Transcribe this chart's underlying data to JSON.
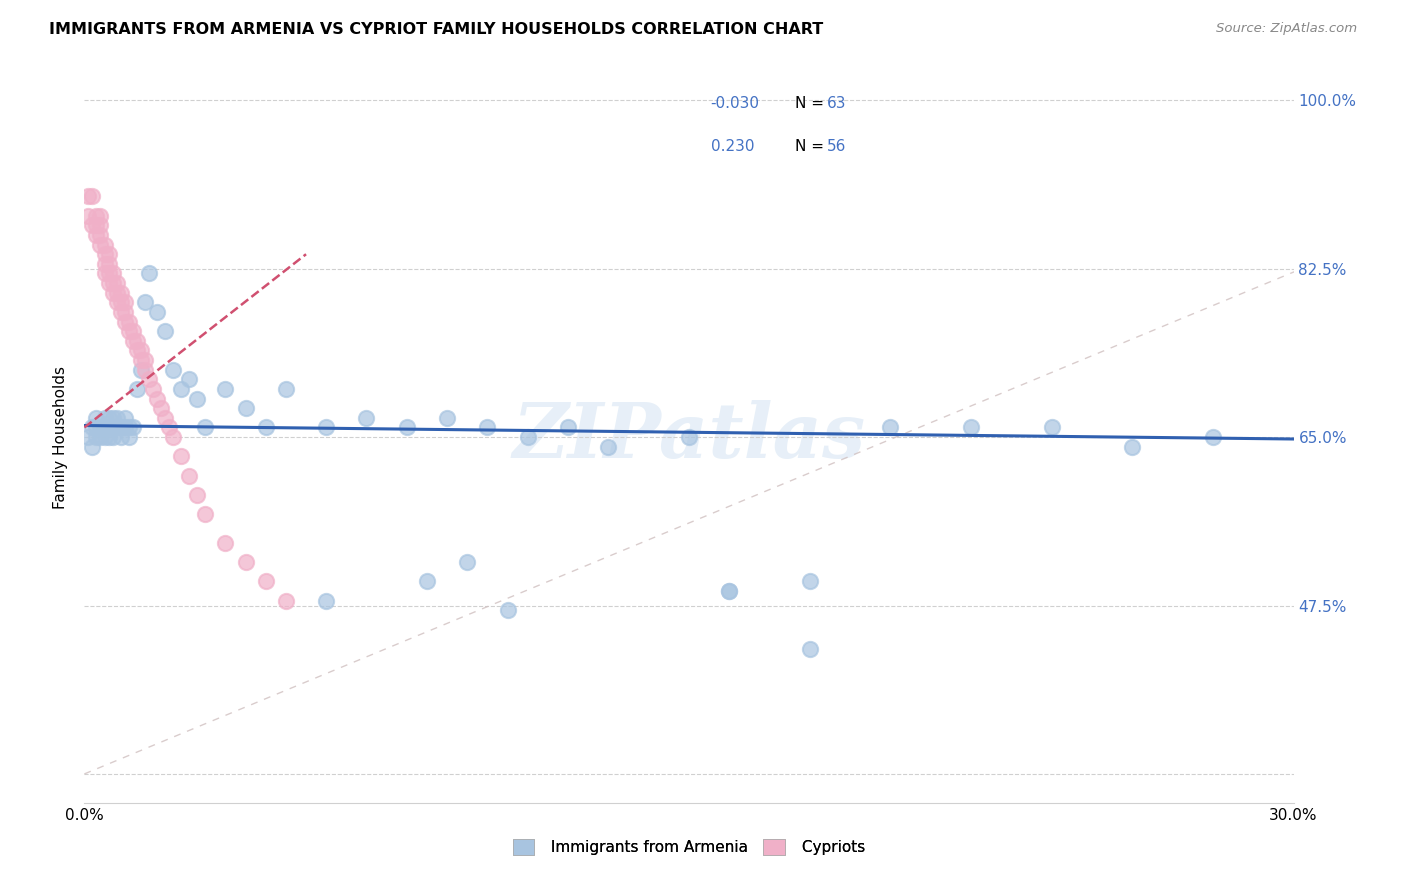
{
  "title": "IMMIGRANTS FROM ARMENIA VS CYPRIOT FAMILY HOUSEHOLDS CORRELATION CHART",
  "source": "Source: ZipAtlas.com",
  "ylabel": "Family Households",
  "watermark": "ZIPatlas",
  "color_armenia": "#a8c4e0",
  "color_cyprus": "#f0b0c8",
  "color_line_armenia": "#3060b0",
  "color_line_cyprus": "#d05070",
  "xlim": [
    0.0,
    0.3
  ],
  "ylim": [
    0.27,
    1.03
  ],
  "ytick_vals": [
    0.3,
    0.475,
    0.65,
    0.825,
    1.0
  ],
  "ytick_labels": [
    "",
    "47.5%",
    "65.0%",
    "82.5%",
    "100.0%"
  ],
  "armenia_x": [
    0.001,
    0.002,
    0.002,
    0.003,
    0.003,
    0.003,
    0.004,
    0.004,
    0.005,
    0.005,
    0.005,
    0.006,
    0.006,
    0.006,
    0.007,
    0.007,
    0.007,
    0.008,
    0.008,
    0.009,
    0.009,
    0.01,
    0.01,
    0.011,
    0.011,
    0.012,
    0.013,
    0.014,
    0.015,
    0.016,
    0.018,
    0.02,
    0.022,
    0.024,
    0.026,
    0.028,
    0.03,
    0.035,
    0.04,
    0.045,
    0.05,
    0.06,
    0.07,
    0.08,
    0.09,
    0.1,
    0.11,
    0.12,
    0.13,
    0.15,
    0.16,
    0.18,
    0.2,
    0.22,
    0.24,
    0.26,
    0.28,
    0.16,
    0.06,
    0.085,
    0.095,
    0.105,
    0.18
  ],
  "armenia_y": [
    0.65,
    0.64,
    0.66,
    0.65,
    0.66,
    0.67,
    0.65,
    0.66,
    0.65,
    0.66,
    0.67,
    0.65,
    0.66,
    0.67,
    0.65,
    0.66,
    0.67,
    0.66,
    0.67,
    0.65,
    0.66,
    0.66,
    0.67,
    0.65,
    0.66,
    0.66,
    0.7,
    0.72,
    0.79,
    0.82,
    0.78,
    0.76,
    0.72,
    0.7,
    0.71,
    0.69,
    0.66,
    0.7,
    0.68,
    0.66,
    0.7,
    0.66,
    0.67,
    0.66,
    0.67,
    0.66,
    0.65,
    0.66,
    0.64,
    0.65,
    0.49,
    0.5,
    0.66,
    0.66,
    0.66,
    0.64,
    0.65,
    0.49,
    0.48,
    0.5,
    0.52,
    0.47,
    0.43
  ],
  "cyprus_x": [
    0.001,
    0.001,
    0.002,
    0.002,
    0.003,
    0.003,
    0.003,
    0.004,
    0.004,
    0.004,
    0.004,
    0.005,
    0.005,
    0.005,
    0.005,
    0.006,
    0.006,
    0.006,
    0.006,
    0.007,
    0.007,
    0.007,
    0.008,
    0.008,
    0.008,
    0.009,
    0.009,
    0.009,
    0.01,
    0.01,
    0.01,
    0.011,
    0.011,
    0.012,
    0.012,
    0.013,
    0.013,
    0.014,
    0.014,
    0.015,
    0.015,
    0.016,
    0.017,
    0.018,
    0.019,
    0.02,
    0.021,
    0.022,
    0.024,
    0.026,
    0.028,
    0.03,
    0.035,
    0.04,
    0.045,
    0.05
  ],
  "cyprus_y": [
    0.88,
    0.9,
    0.87,
    0.9,
    0.86,
    0.87,
    0.88,
    0.85,
    0.86,
    0.87,
    0.88,
    0.82,
    0.83,
    0.84,
    0.85,
    0.81,
    0.82,
    0.83,
    0.84,
    0.8,
    0.81,
    0.82,
    0.79,
    0.8,
    0.81,
    0.78,
    0.79,
    0.8,
    0.77,
    0.78,
    0.79,
    0.76,
    0.77,
    0.75,
    0.76,
    0.74,
    0.75,
    0.73,
    0.74,
    0.72,
    0.73,
    0.71,
    0.7,
    0.69,
    0.68,
    0.67,
    0.66,
    0.65,
    0.63,
    0.61,
    0.59,
    0.57,
    0.54,
    0.52,
    0.5,
    0.48
  ]
}
